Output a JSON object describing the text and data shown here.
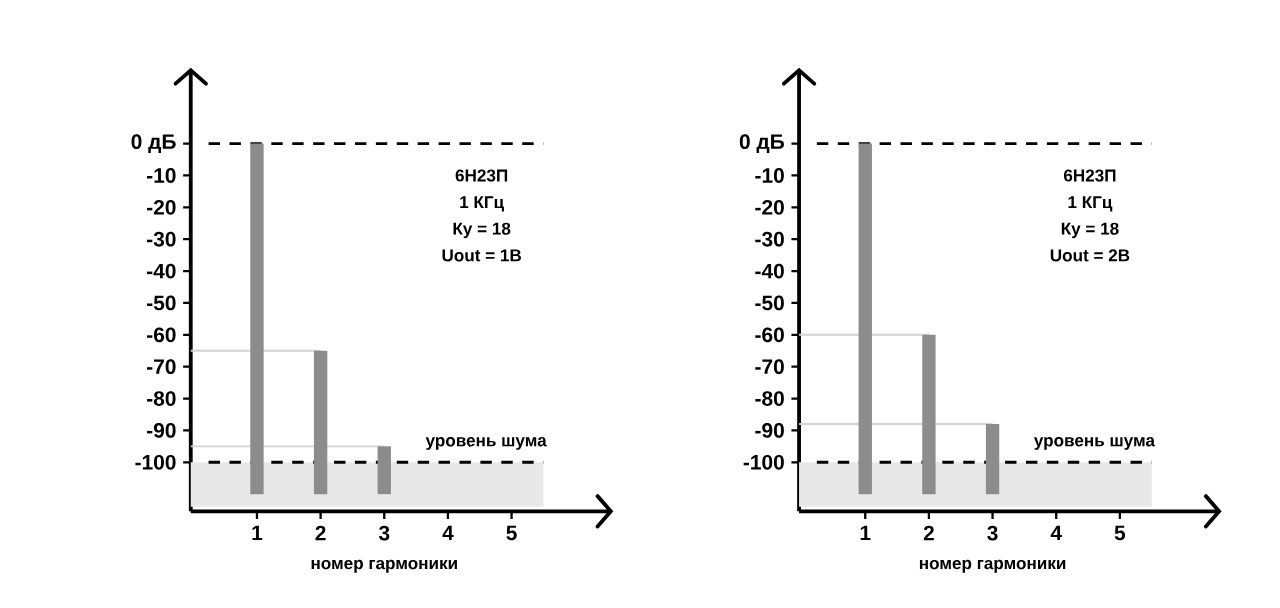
{
  "chart_data": [
    {
      "type": "bar",
      "categories": [
        "1",
        "2",
        "3",
        "4",
        "5"
      ],
      "values": [
        110,
        45,
        15,
        null,
        null
      ],
      "base": [
        -110,
        -110,
        -110,
        null,
        null
      ],
      "color": "#8c8c8c",
      "xlabel": "номер гармоники",
      "ylim": [
        -115.4,
        23
      ],
      "yticks": [
        {
          "value": 0,
          "label": "0 дБ"
        },
        -10,
        -20,
        -30,
        -40,
        -50,
        -60,
        -70,
        -80,
        -90,
        -100
      ],
      "ref_lines": [
        {
          "axis": "y",
          "value": 0,
          "color": "#000000",
          "line_style": "dashed"
        },
        {
          "axis": "y",
          "value": -100,
          "label": "уровень шума",
          "color": "#000000",
          "line_style": "dashed"
        },
        {
          "axis": "y",
          "value": -65,
          "color": "#d4d4d4",
          "line_style": "solid"
        },
        {
          "axis": "y",
          "value": -95,
          "color": "#d4d4d4",
          "line_style": "solid"
        }
      ],
      "bands": [
        {
          "axis": "y",
          "from": -114,
          "to": -100,
          "color": "#e8e8e8"
        }
      ],
      "annotations": [
        "6Н23П",
        "1 КГц",
        "Ку = 18",
        "Uout = 1В"
      ]
    },
    {
      "type": "bar",
      "categories": [
        "1",
        "2",
        "3",
        "4",
        "5"
      ],
      "values": [
        110,
        50,
        22,
        null,
        null
      ],
      "base": [
        -110,
        -110,
        -110,
        null,
        null
      ],
      "color": "#8c8c8c",
      "xlabel": "номер гармоники",
      "ylim": [
        -115.4,
        23
      ],
      "yticks": [
        {
          "value": 0,
          "label": "0 дБ"
        },
        -10,
        -20,
        -30,
        -40,
        -50,
        -60,
        -70,
        -80,
        -90,
        -100
      ],
      "ref_lines": [
        {
          "axis": "y",
          "value": 0,
          "color": "#000000",
          "line_style": "dashed"
        },
        {
          "axis": "y",
          "value": -100,
          "label": "уровень шума",
          "color": "#000000",
          "line_style": "dashed"
        },
        {
          "axis": "y",
          "value": -60,
          "color": "#d4d4d4",
          "line_style": "solid"
        },
        {
          "axis": "y",
          "value": -88,
          "color": "#d4d4d4",
          "line_style": "solid"
        }
      ],
      "bands": [
        {
          "axis": "y",
          "from": -114,
          "to": -100,
          "color": "#e8e8e8"
        }
      ],
      "annotations": [
        "6Н23П",
        "1 КГц",
        "Ку = 18",
        "Uout = 2В"
      ]
    }
  ]
}
